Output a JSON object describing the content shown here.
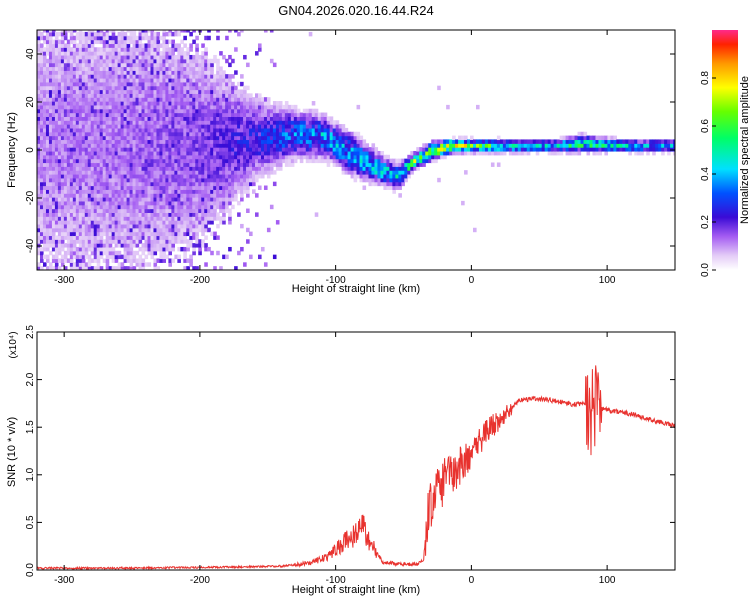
{
  "title": "GN04.2026.020.16.44.R24",
  "colors": {
    "snr_line": "#e8322e",
    "spectro_strong": "#5a0ed6",
    "spectro_weak": "#c8a6f2"
  },
  "chart_data": [
    {
      "type": "heatmap",
      "xlabel": "Height of straight line (km)",
      "ylabel": "Frequency (Hz)",
      "xlim": [
        -320,
        150
      ],
      "ylim": [
        -50,
        50
      ],
      "xticks": [
        -300,
        -200,
        -100,
        0,
        100
      ],
      "yticks": [
        -40,
        -20,
        0,
        20,
        40
      ],
      "colorbar": {
        "label": "Normalized spectral amplitude",
        "range": [
          0,
          1
        ],
        "ticks": [
          "0.0",
          "0.2",
          "0.4",
          "0.6",
          "0.8"
        ],
        "colormap": "rainbow"
      },
      "ridge": [
        {
          "x": -320,
          "f": 2,
          "amp": 0.12,
          "spread": 40
        },
        {
          "x": -250,
          "f": 1,
          "amp": 0.14,
          "spread": 38
        },
        {
          "x": -200,
          "f": 1,
          "amp": 0.18,
          "spread": 25
        },
        {
          "x": -160,
          "f": 4,
          "amp": 0.25,
          "spread": 10
        },
        {
          "x": -130,
          "f": 6,
          "amp": 0.35,
          "spread": 6
        },
        {
          "x": -110,
          "f": 5,
          "amp": 0.4,
          "spread": 5
        },
        {
          "x": -90,
          "f": -2,
          "amp": 0.42,
          "spread": 5
        },
        {
          "x": -75,
          "f": -7,
          "amp": 0.45,
          "spread": 4
        },
        {
          "x": -55,
          "f": -12,
          "amp": 0.45,
          "spread": 3
        },
        {
          "x": -45,
          "f": -6,
          "amp": 0.6,
          "spread": 2
        },
        {
          "x": -30,
          "f": -1,
          "amp": 0.75,
          "spread": 2
        },
        {
          "x": -15,
          "f": 1,
          "amp": 0.85,
          "spread": 1.5
        },
        {
          "x": 0,
          "f": 1,
          "amp": 0.6,
          "spread": 1.5
        },
        {
          "x": 30,
          "f": 1,
          "amp": 0.5,
          "spread": 1.5
        },
        {
          "x": 60,
          "f": 1,
          "amp": 0.45,
          "spread": 1.5
        },
        {
          "x": 80,
          "f": 2,
          "amp": 0.55,
          "spread": 2
        },
        {
          "x": 110,
          "f": 1,
          "amp": 0.45,
          "spread": 1.5
        },
        {
          "x": 150,
          "f": 1,
          "amp": 0.4,
          "spread": 1.5
        }
      ]
    },
    {
      "type": "line",
      "xlabel": "Height of straight line (km)",
      "ylabel": "SNR (10 * v/v)",
      "y_multiplier_label": "(x10⁴)",
      "xlim": [
        -320,
        150
      ],
      "ylim": [
        0,
        2.5
      ],
      "xticks": [
        -300,
        -200,
        -100,
        0,
        100
      ],
      "yticks": [
        0.0,
        0.5,
        1.0,
        1.5,
        2.0,
        2.5
      ],
      "series": [
        {
          "x": [
            -320,
            -250,
            -180,
            -140,
            -120,
            -105,
            -95,
            -85,
            -80,
            -75,
            -65,
            -50,
            -40,
            -35,
            -32,
            -25,
            -15,
            -5,
            5,
            15,
            25,
            35,
            45,
            55,
            65,
            75,
            85,
            88,
            92,
            95,
            100,
            110,
            120,
            130,
            140,
            150
          ],
          "y": [
            0.02,
            0.02,
            0.03,
            0.04,
            0.07,
            0.15,
            0.28,
            0.38,
            0.45,
            0.3,
            0.08,
            0.06,
            0.06,
            0.1,
            0.55,
            0.85,
            1.0,
            1.15,
            1.35,
            1.5,
            1.65,
            1.78,
            1.8,
            1.79,
            1.77,
            1.74,
            1.75,
            1.62,
            1.78,
            1.7,
            1.68,
            1.66,
            1.63,
            1.59,
            1.55,
            1.51
          ]
        }
      ]
    }
  ]
}
